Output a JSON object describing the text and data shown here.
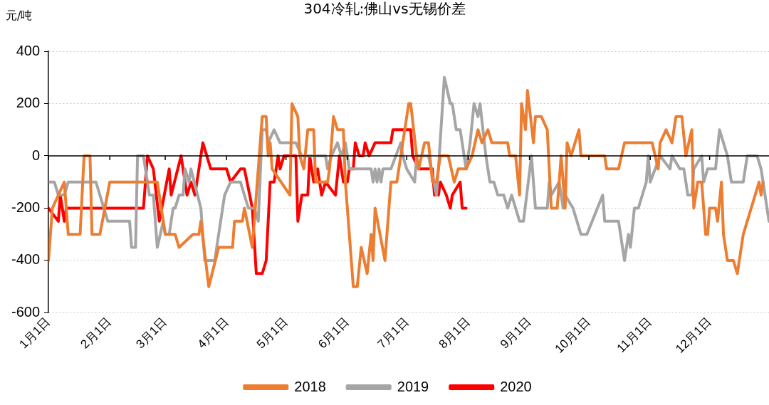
{
  "chart_data": {
    "type": "line",
    "title": "304冷轧:佛山vs无锡价差",
    "ylabel": "元/吨",
    "xlim": [
      "--01-01",
      "--12-31"
    ],
    "xticks": [
      {
        "value": "--01-01",
        "label": "1月1日"
      },
      {
        "value": "--02-01",
        "label": "2月1日"
      },
      {
        "value": "--03-01",
        "label": "3月1日"
      },
      {
        "value": "--04-01",
        "label": "4月1日"
      },
      {
        "value": "--05-01",
        "label": "5月1日"
      },
      {
        "value": "--06-01",
        "label": "6月1日"
      },
      {
        "value": "--07-01",
        "label": "7月1日"
      },
      {
        "value": "--08-01",
        "label": "8月1日"
      },
      {
        "value": "--09-01",
        "label": "9月1日"
      },
      {
        "value": "--10-01",
        "label": "10月1日"
      },
      {
        "value": "--11-01",
        "label": "11月1日"
      },
      {
        "value": "--12-01",
        "label": "12月1日"
      }
    ],
    "ylim": [
      -600,
      400
    ],
    "yticks": [
      -600,
      -400,
      -200,
      0,
      200,
      400
    ],
    "grid": "y",
    "legend": "bottom",
    "marker": "none",
    "line_style": "solid",
    "series": [
      {
        "name": "2018",
        "color": "#ed7d31",
        "x": [
          "--01-01",
          "--01-03",
          "--01-09",
          "--01-11",
          "--01-17",
          "--01-19",
          "--01-22",
          "--01-23",
          "--01-27",
          "--02-01",
          "--02-25",
          "--03-01",
          "--03-06",
          "--03-08",
          "--03-15",
          "--03-18",
          "--03-19",
          "--03-23",
          "--03-28",
          "--04-04",
          "--04-05",
          "--04-09",
          "--04-10",
          "--04-14",
          "--04-19",
          "--04-21",
          "--04-22",
          "--04-23",
          "--04-24",
          "--05-03",
          "--05-04",
          "--05-07",
          "--05-08",
          "--05-10",
          "--05-12",
          "--05-15",
          "--05-16",
          "--05-22",
          "--05-23",
          "--05-25",
          "--05-27",
          "--05-30",
          "--05-31",
          "--06-04",
          "--06-06",
          "--06-08",
          "--06-11",
          "--06-13",
          "--06-14",
          "--06-15",
          "--06-20",
          "--06-23",
          "--06-26",
          "--06-28",
          "--07-02",
          "--07-03",
          "--07-06",
          "--07-07",
          "--07-10",
          "--07-12",
          "--07-14",
          "--07-16",
          "--07-18",
          "--07-22",
          "--07-25",
          "--07-27",
          "--07-31",
          "--08-03",
          "--08-06",
          "--08-08",
          "--08-11",
          "--08-13",
          "--08-17",
          "--08-21",
          "--08-22",
          "--08-25",
          "--08-27",
          "--08-28",
          "--08-30",
          "--08-31",
          "--09-03",
          "--09-04",
          "--09-07",
          "--09-10",
          "--09-12",
          "--09-15",
          "--09-17",
          "--09-19",
          "--09-20",
          "--09-22",
          "--09-26",
          "--09-27",
          "--10-09",
          "--10-10",
          "--10-16",
          "--10-19",
          "--11-02",
          "--11-05",
          "--11-06",
          "--11-09",
          "--11-12",
          "--11-14",
          "--11-17",
          "--11-19",
          "--11-22",
          "--11-23",
          "--11-25",
          "--11-27",
          "--11-29",
          "--11-30",
          "--12-01",
          "--12-04",
          "--12-05",
          "--12-07",
          "--12-08",
          "--12-10",
          "--12-13",
          "--12-15",
          "--12-18",
          "--12-20",
          "--12-26",
          "--12-27",
          "--12-28"
        ],
        "values": [
          -400,
          -200,
          -100,
          -300,
          -300,
          0,
          0,
          -300,
          -300,
          -100,
          -100,
          -300,
          -300,
          -350,
          -300,
          -300,
          -250,
          -500,
          -350,
          -350,
          -250,
          -250,
          -200,
          -350,
          150,
          150,
          0,
          50,
          -50,
          -150,
          200,
          150,
          0,
          -50,
          100,
          100,
          -100,
          -100,
          -50,
          150,
          100,
          100,
          -100,
          -500,
          -500,
          -350,
          -450,
          -300,
          -400,
          -200,
          -400,
          -100,
          -100,
          0,
          200,
          200,
          0,
          -50,
          50,
          50,
          -100,
          -100,
          0,
          0,
          -100,
          -50,
          -50,
          0,
          100,
          50,
          100,
          50,
          50,
          50,
          0,
          0,
          -150,
          200,
          100,
          250,
          50,
          150,
          150,
          100,
          -200,
          -200,
          0,
          -200,
          50,
          0,
          100,
          0,
          0,
          -50,
          -50,
          50,
          50,
          -50,
          50,
          100,
          50,
          150,
          150,
          0,
          100,
          -200,
          -100,
          -100,
          -300,
          -300,
          -200,
          -200,
          -250,
          -100,
          -300,
          -400,
          -400,
          -450,
          -300,
          -250,
          -100,
          -150,
          -100
        ]
      },
      {
        "name": "2019",
        "color": "#a5a5a5",
        "x": [
          "--01-01",
          "--01-04",
          "--01-06",
          "--01-09",
          "--01-11",
          "--01-25",
          "--01-31",
          "--02-11",
          "--02-12",
          "--02-14",
          "--02-15",
          "--02-18",
          "--02-21",
          "--02-23",
          "--02-25",
          "--02-28",
          "--03-01",
          "--03-03",
          "--03-05",
          "--03-06",
          "--03-08",
          "--03-10",
          "--03-11",
          "--03-13",
          "--03-14",
          "--03-19",
          "--03-21",
          "--03-26",
          "--03-29",
          "--03-31",
          "--04-03",
          "--04-08",
          "--04-12",
          "--04-15",
          "--04-17",
          "--04-19",
          "--04-21",
          "--04-22",
          "--04-25",
          "--04-28",
          "--05-06",
          "--05-09",
          "--05-21",
          "--05-22",
          "--05-24",
          "--05-27",
          "--05-29",
          "--05-31",
          "--06-02",
          "--06-13",
          "--06-14",
          "--06-15",
          "--06-16",
          "--06-17",
          "--06-18",
          "--06-19",
          "--06-23",
          "--06-28",
          "--06-29",
          "--07-01",
          "--07-05",
          "--07-06",
          "--07-12",
          "--07-16",
          "--07-17",
          "--07-20",
          "--07-23",
          "--07-24",
          "--07-25",
          "--07-26",
          "--07-28",
          "--07-30",
          "--07-31",
          "--08-02",
          "--08-04",
          "--08-06",
          "--08-07",
          "--08-10",
          "--08-12",
          "--08-14",
          "--08-16",
          "--08-19",
          "--08-21",
          "--08-23",
          "--08-27",
          "--08-29",
          "--09-02",
          "--09-04",
          "--09-10",
          "--09-11",
          "--09-12",
          "--09-16",
          "--09-18",
          "--09-19",
          "--09-23",
          "--09-25",
          "--09-27",
          "--09-30",
          "--10-08",
          "--10-09",
          "--10-16",
          "--10-19",
          "--10-21",
          "--10-22",
          "--10-24",
          "--10-26",
          "--10-30",
          "--10-31",
          "--11-01",
          "--11-06",
          "--11-11",
          "--11-12",
          "--11-16",
          "--11-18",
          "--11-20",
          "--11-22",
          "--11-23",
          "--11-27",
          "--11-28",
          "--11-30",
          "--12-04",
          "--12-06",
          "--12-10",
          "--12-12",
          "--12-18",
          "--12-20",
          "--12-25",
          "--12-27",
          "--12-31"
        ],
        "values": [
          -100,
          -100,
          -150,
          -150,
          -100,
          -100,
          -250,
          -250,
          -350,
          -350,
          0,
          0,
          -150,
          -150,
          -350,
          -250,
          -300,
          -300,
          -200,
          -200,
          -150,
          -150,
          -50,
          -100,
          -50,
          -200,
          -400,
          -400,
          -250,
          -150,
          -100,
          -100,
          -200,
          -200,
          -250,
          100,
          100,
          50,
          100,
          50,
          50,
          0,
          0,
          -50,
          0,
          50,
          0,
          50,
          -50,
          -50,
          -100,
          -50,
          -100,
          -50,
          -100,
          -50,
          -50,
          50,
          0,
          -50,
          -100,
          0,
          0,
          -150,
          -50,
          300,
          200,
          200,
          150,
          100,
          100,
          0,
          -50,
          50,
          200,
          150,
          200,
          0,
          -100,
          -100,
          -150,
          -150,
          -200,
          -150,
          -250,
          -250,
          0,
          -200,
          -200,
          -100,
          -150,
          -100,
          -200,
          -150,
          -200,
          -250,
          -300,
          -300,
          -150,
          -250,
          -250,
          -400,
          -300,
          -350,
          -200,
          -200,
          -100,
          0,
          -100,
          0,
          -50,
          0,
          -50,
          -50,
          -150,
          -150,
          -50,
          0,
          -100,
          -50,
          -50,
          100,
          0,
          -100,
          -100,
          0,
          0,
          -50,
          -250
        ]
      },
      {
        "name": "2020",
        "color": "#ff0000",
        "x": [
          "--01-01",
          "--01-06",
          "--01-07",
          "--01-09",
          "--01-10",
          "--02-18",
          "--02-20",
          "--02-23",
          "--02-26",
          "--03-03",
          "--03-04",
          "--03-09",
          "--03-12",
          "--03-14",
          "--03-16",
          "--03-20",
          "--03-24",
          "--04-01",
          "--04-03",
          "--04-08",
          "--04-10",
          "--04-14",
          "--04-16",
          "--04-19",
          "--04-21",
          "--04-23",
          "--04-25",
          "--04-27",
          "--04-28",
          "--04-30",
          "--05-06",
          "--05-07",
          "--05-09",
          "--05-12",
          "--05-13",
          "--05-15",
          "--05-17",
          "--05-19",
          "--05-21",
          "--05-26",
          "--05-28",
          "--05-30",
          "--06-01",
          "--06-02",
          "--06-04",
          "--06-05",
          "--06-07",
          "--06-09",
          "--06-10",
          "--06-12",
          "--06-15",
          "--06-23",
          "--06-24",
          "--07-03",
          "--07-04",
          "--07-07",
          "--07-14",
          "--07-15",
          "--07-17",
          "--07-18",
          "--07-21",
          "--07-23",
          "--07-24",
          "--07-28",
          "--07-29",
          "--07-31"
        ],
        "values": [
          -200,
          -250,
          -150,
          -250,
          -200,
          -200,
          0,
          -50,
          -250,
          -50,
          -150,
          0,
          -150,
          -100,
          -150,
          50,
          -50,
          -50,
          -100,
          -50,
          -50,
          -200,
          -450,
          -450,
          -400,
          -100,
          -100,
          0,
          -50,
          0,
          0,
          -250,
          -150,
          -150,
          0,
          -100,
          -50,
          -150,
          -100,
          -150,
          0,
          -100,
          -100,
          -50,
          -50,
          50,
          0,
          0,
          50,
          0,
          50,
          50,
          100,
          100,
          0,
          -50,
          -50,
          -150,
          -150,
          -100,
          -150,
          -200,
          -150,
          -100,
          -200,
          -200
        ]
      }
    ]
  }
}
